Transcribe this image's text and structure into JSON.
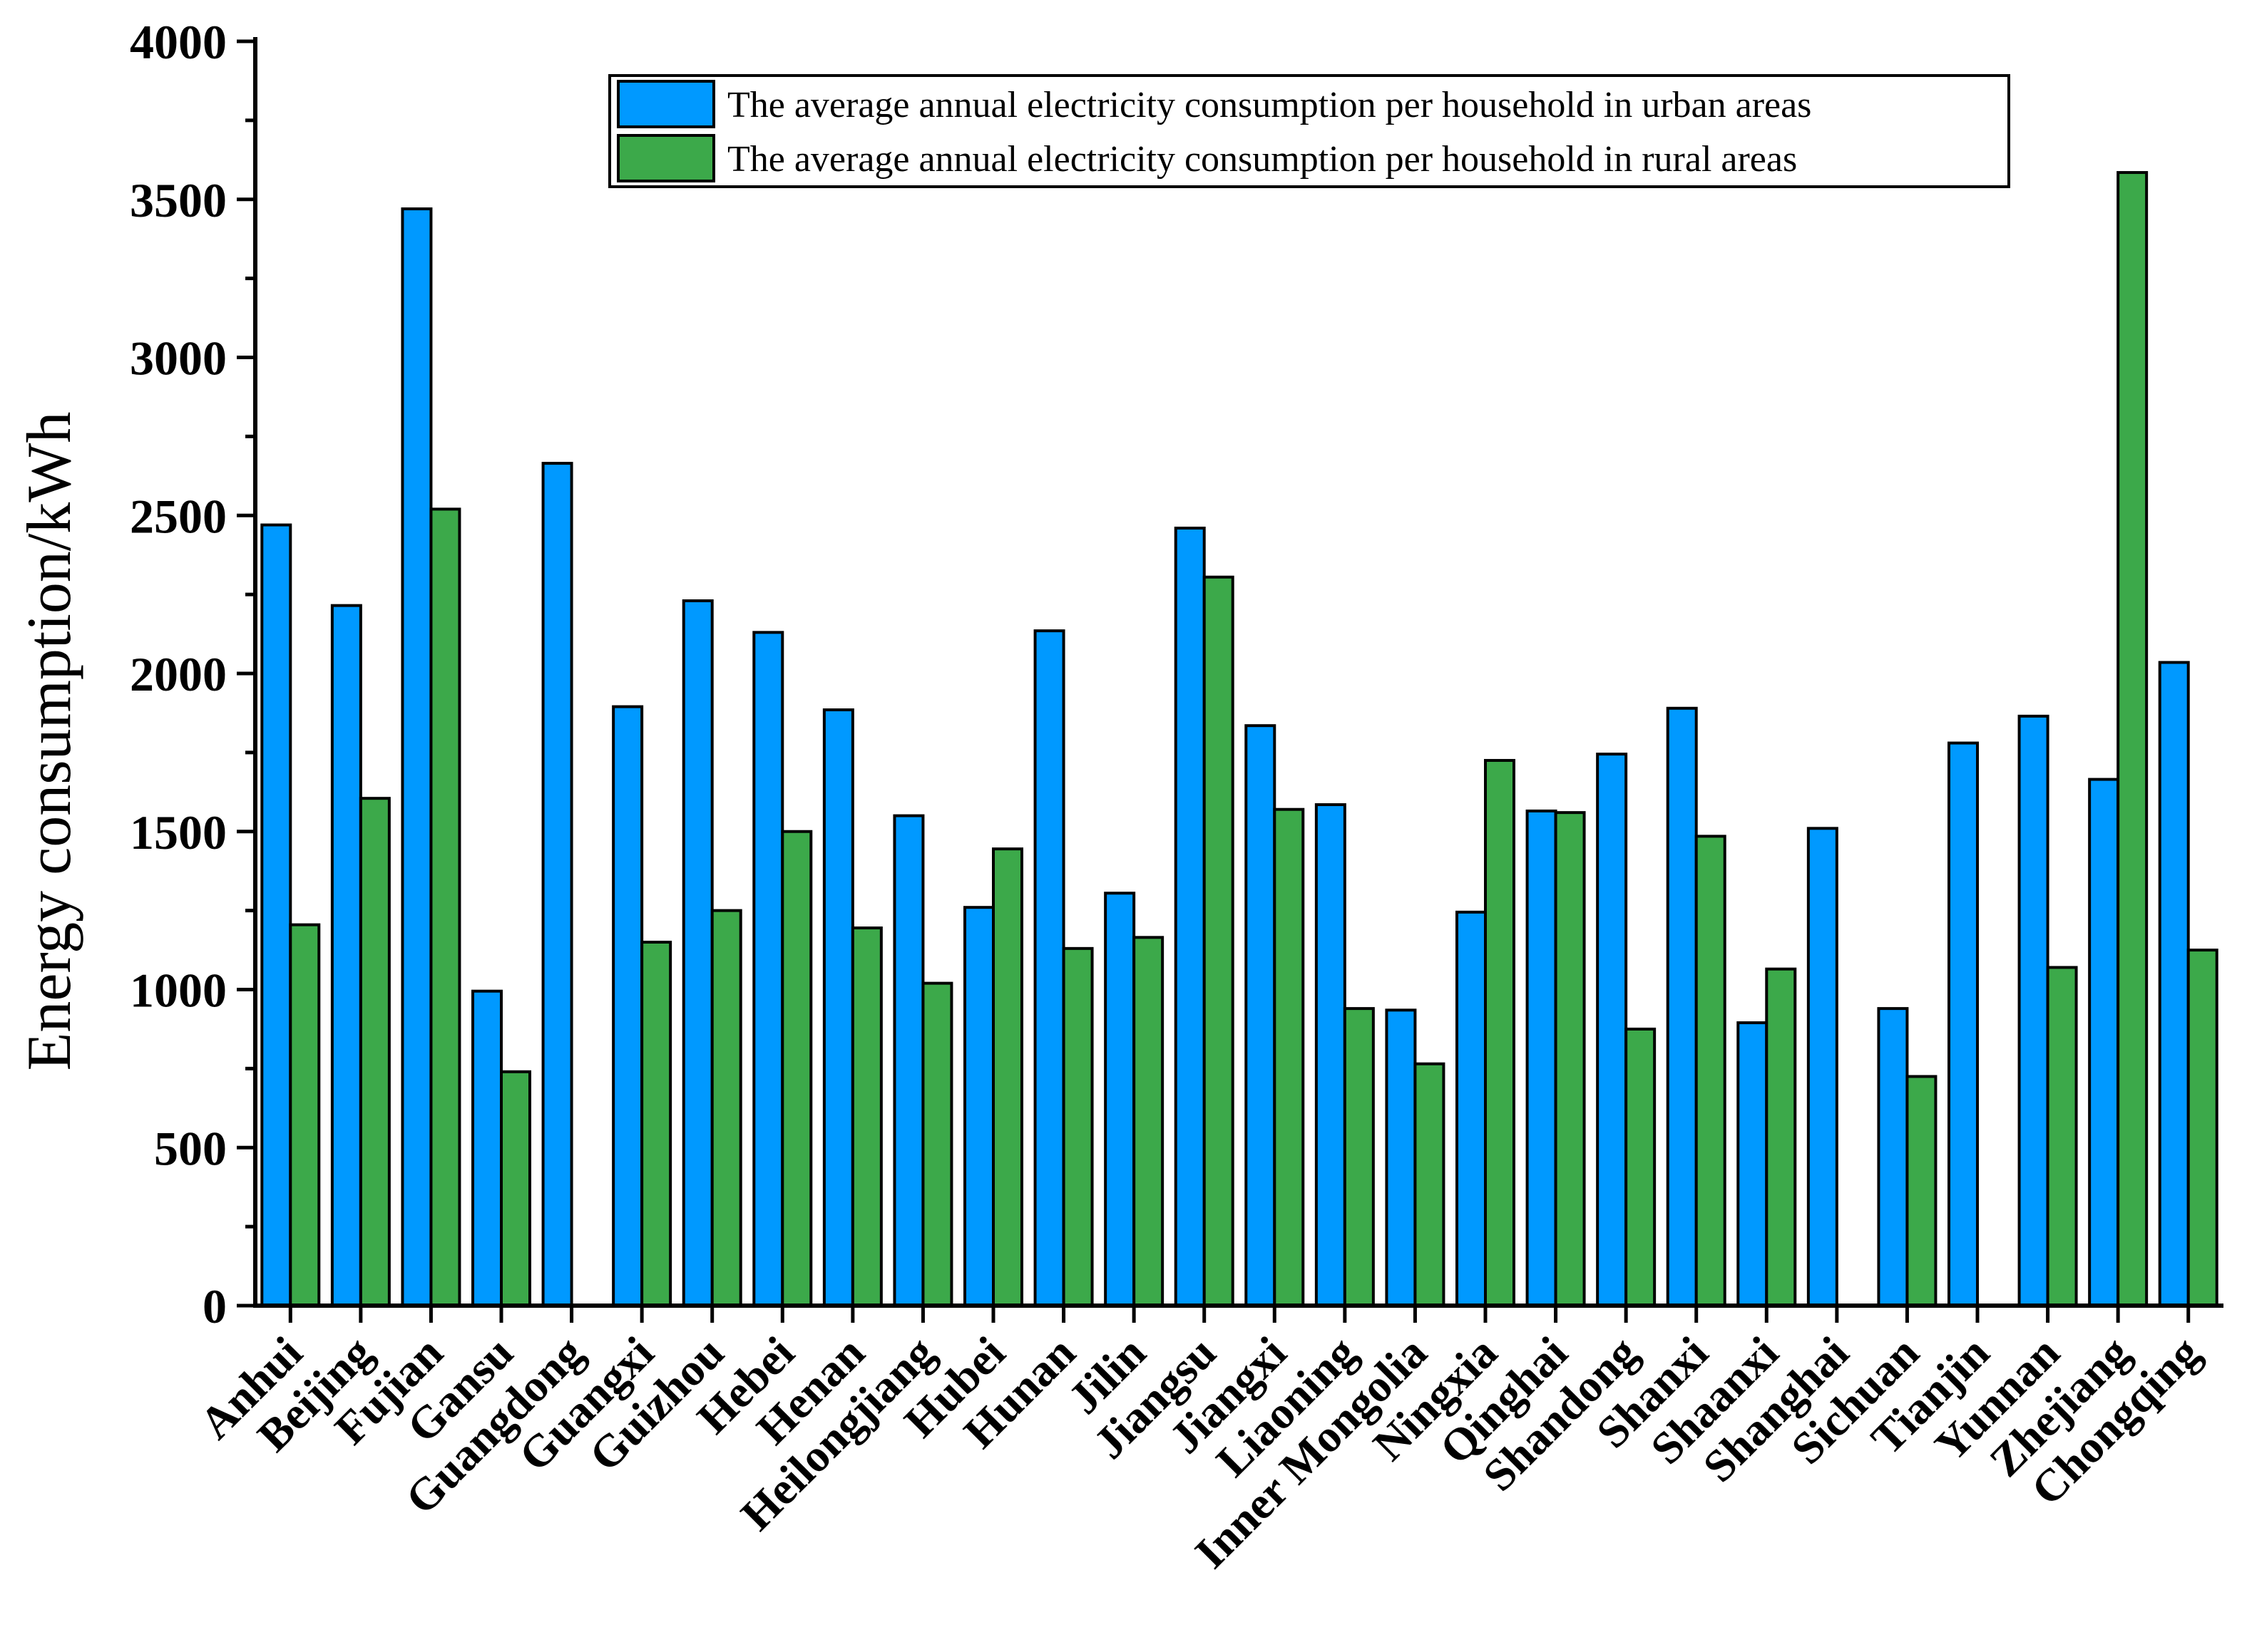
{
  "chart_data": {
    "type": "bar",
    "title": "",
    "xlabel": "",
    "ylabel": "Energy consumption/kWh",
    "ylim": [
      0,
      4000
    ],
    "yticks": [
      0,
      500,
      1000,
      1500,
      2000,
      2500,
      3000,
      3500,
      4000
    ],
    "legend_position": "top-right",
    "categories": [
      "Anhui",
      "Beijing",
      "Fujian",
      "Gansu",
      "Guangdong",
      "Guangxi",
      "Guizhou",
      "Hebei",
      "Henan",
      "Heilongjiang",
      "Hubei",
      "Hunan",
      "Jilin",
      "Jiangsu",
      "Jiangxi",
      "Liaoning",
      "Inner Mongolia",
      "Ningxia",
      "Qinghai",
      "Shandong",
      "Shanxi",
      "Shaanxi",
      "Shanghai",
      "Sichuan",
      "Tianjin",
      "Yunnan",
      "Zhejiang",
      "Chongqing"
    ],
    "series": [
      {
        "name": "The average annual electricity consumption per household in urban areas",
        "color": "#0099ff",
        "values": [
          2470,
          2215,
          3470,
          995,
          2665,
          1895,
          2230,
          2130,
          1885,
          1550,
          1260,
          2135,
          1305,
          2460,
          1835,
          1585,
          935,
          1245,
          1565,
          1745,
          1890,
          895,
          1510,
          940,
          1780,
          1865,
          1665,
          2035
        ]
      },
      {
        "name": "The average annual electricity consumption per household in rural areas",
        "color": "#3ca94a",
        "values": [
          1205,
          1605,
          2520,
          740,
          null,
          1150,
          1250,
          1500,
          1195,
          1020,
          1445,
          1130,
          1165,
          2305,
          1570,
          940,
          765,
          1725,
          1560,
          875,
          1485,
          1065,
          null,
          725,
          null,
          1070,
          3585,
          1125
        ]
      }
    ]
  }
}
